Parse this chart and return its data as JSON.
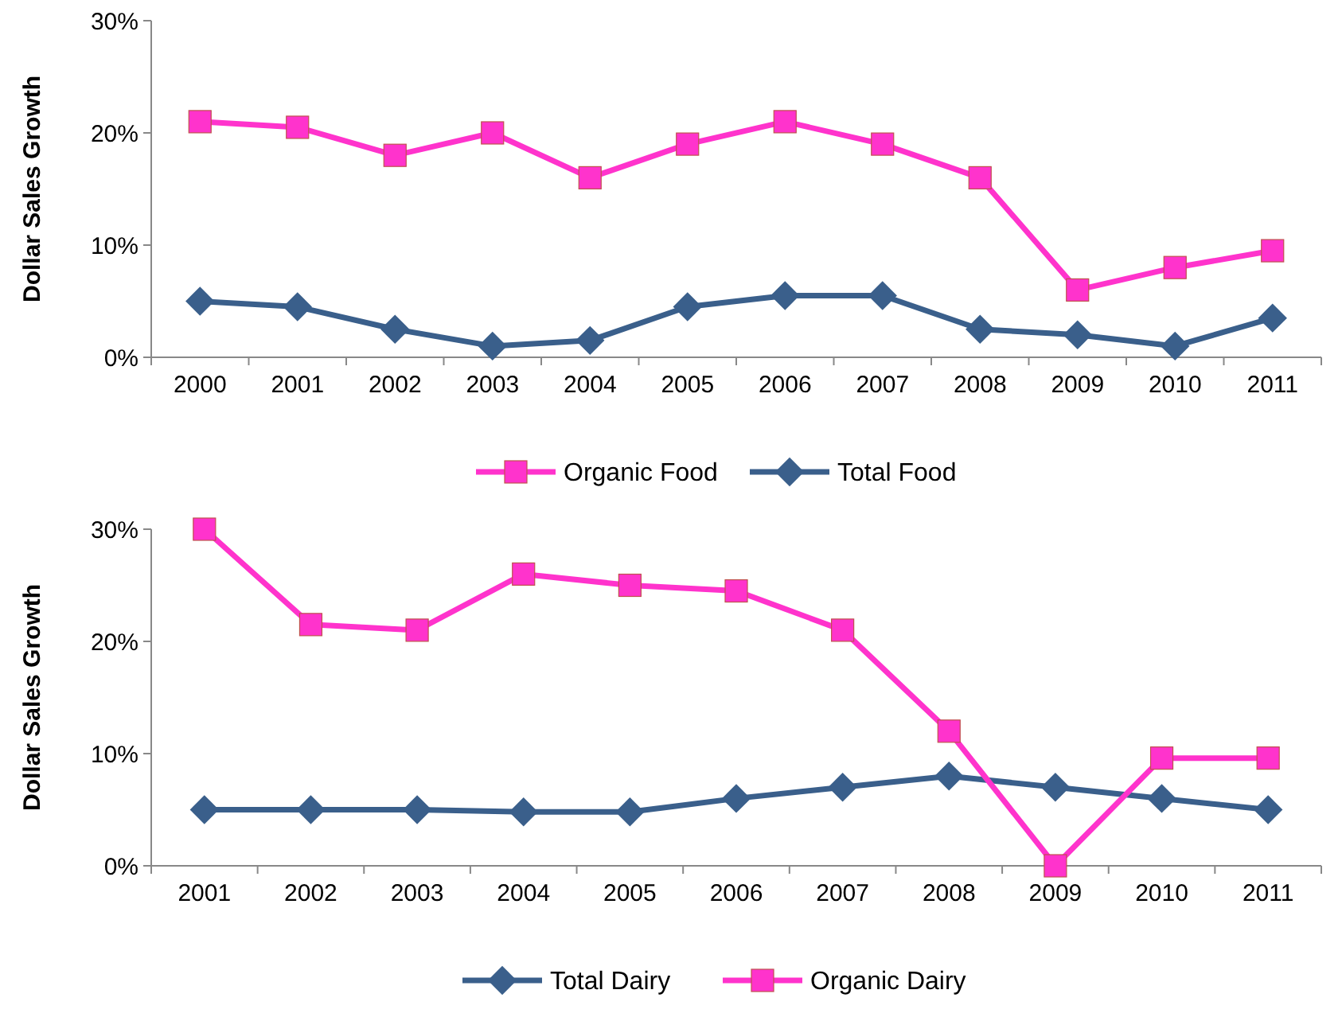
{
  "chart_data": [
    {
      "type": "line",
      "ylabel": "Dollar Sales Growth",
      "categories": [
        "2000",
        "2001",
        "2002",
        "2003",
        "2004",
        "2005",
        "2006",
        "2007",
        "2008",
        "2009",
        "2010",
        "2011"
      ],
      "ylim": [
        0,
        30
      ],
      "yticks": [
        {
          "value": 0,
          "label": "0%"
        },
        {
          "value": 10,
          "label": "10%"
        },
        {
          "value": 20,
          "label": "20%"
        },
        {
          "value": 30,
          "label": "30%"
        }
      ],
      "legend": "bottom",
      "series": [
        {
          "name": "Organic Food",
          "color": "#ff33cc",
          "marker": "square",
          "values": [
            21,
            20.5,
            18,
            20,
            16,
            19,
            21,
            19,
            16,
            6,
            8,
            9.5
          ]
        },
        {
          "name": "Total Food",
          "color": "#3a5f8b",
          "marker": "diamond",
          "values": [
            5,
            4.5,
            2.5,
            1,
            1.5,
            4.5,
            5.5,
            5.5,
            2.5,
            2,
            1,
            3.5
          ]
        }
      ]
    },
    {
      "type": "line",
      "ylabel": "Dollar Sales Growth",
      "categories": [
        "2001",
        "2002",
        "2003",
        "2004",
        "2005",
        "2006",
        "2007",
        "2008",
        "2009",
        "2010",
        "2011"
      ],
      "ylim": [
        0,
        30
      ],
      "yticks": [
        {
          "value": 0,
          "label": "0%"
        },
        {
          "value": 10,
          "label": "10%"
        },
        {
          "value": 20,
          "label": "20%"
        },
        {
          "value": 30,
          "label": "30%"
        }
      ],
      "legend": "bottom",
      "series": [
        {
          "name": "Total Dairy",
          "color": "#3a5f8b",
          "marker": "diamond",
          "values": [
            5,
            5,
            5,
            4.8,
            4.8,
            6,
            7,
            8,
            7,
            6,
            5
          ]
        },
        {
          "name": "Organic Dairy",
          "color": "#ff33cc",
          "marker": "square",
          "values": [
            30,
            21.5,
            21,
            26,
            25,
            24.5,
            21,
            12,
            0,
            9.6,
            9.6
          ]
        }
      ]
    }
  ]
}
